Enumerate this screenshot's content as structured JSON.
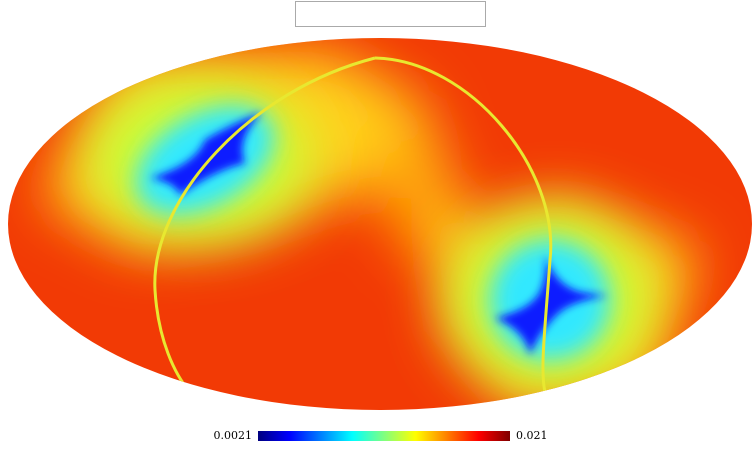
{
  "chart_data": {
    "type": "mollweide",
    "colormap": "jet",
    "colorbar_ticks": [
      0.0021,
      0.021
    ]
  }
}
